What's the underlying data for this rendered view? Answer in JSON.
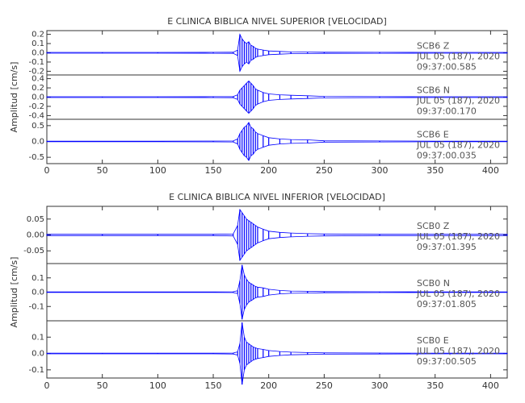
{
  "chart_data": [
    {
      "type": "line",
      "title": "E CLINICA BIBLICA NIVEL SUPERIOR [VELOCIDAD]",
      "ylabel": "Amplitud [cm/s]",
      "xlim": [
        0,
        415
      ],
      "xticks": [
        0,
        50,
        100,
        150,
        200,
        250,
        300,
        350,
        400
      ],
      "x": [
        0,
        50,
        100,
        150,
        168,
        172,
        174,
        176,
        178,
        180,
        182,
        184,
        186,
        188,
        190,
        195,
        200,
        210,
        220,
        235,
        250,
        300,
        350,
        415
      ],
      "panels": [
        {
          "station": "SCB6   Z",
          "date": "JUL 05 (187), 2020",
          "time": "09:37:00.585",
          "color": "#0000ff",
          "ylim": [
            -0.24,
            0.24
          ],
          "yticks": [
            0.2,
            0.1,
            {
              "value": 0,
              "label": "0.0"
            },
            -0.1,
            -0.2
          ],
          "values": [
            0.004,
            0.004,
            0.004,
            0.005,
            0.006,
            0.03,
            0.2,
            0.15,
            0.12,
            0.1,
            0.12,
            0.08,
            0.07,
            0.05,
            0.04,
            0.03,
            0.02,
            0.015,
            0.01,
            0.008,
            0.006,
            0.005,
            0.004,
            0.004
          ]
        },
        {
          "station": "SCB6   N",
          "date": "JUL 05 (187), 2020",
          "time": "09:37:00.170",
          "color": "#0000ff",
          "ylim": [
            -0.48,
            0.48
          ],
          "yticks": [
            0.4,
            0.2,
            {
              "value": 0,
              "label": "0.0"
            },
            -0.2,
            -0.4
          ],
          "values": [
            0.008,
            0.008,
            0.008,
            0.01,
            0.012,
            0.05,
            0.15,
            0.2,
            0.25,
            0.3,
            0.35,
            0.3,
            0.25,
            0.18,
            0.15,
            0.1,
            0.07,
            0.05,
            0.04,
            0.03,
            0.015,
            0.01,
            0.008,
            0.008
          ]
        },
        {
          "station": "SCB6   E",
          "date": "JUL 05 (187), 2020",
          "time": "09:37:00.035",
          "color": "#0000ff",
          "ylim": [
            -0.7,
            0.7
          ],
          "yticks": [
            0.5,
            {
              "value": 0,
              "label": "0.0"
            },
            -0.5
          ],
          "values": [
            0.01,
            0.01,
            0.01,
            0.012,
            0.015,
            0.08,
            0.25,
            0.35,
            0.45,
            0.5,
            0.6,
            0.45,
            0.4,
            0.3,
            0.25,
            0.18,
            0.12,
            0.08,
            0.06,
            0.05,
            0.02,
            0.015,
            0.01,
            0.01
          ]
        }
      ]
    },
    {
      "type": "line",
      "title": "E CLINICA BIBLICA NIVEL INFERIOR [VELOCIDAD]",
      "ylabel": "Amplitud [cm/s]",
      "xlim": [
        0,
        415
      ],
      "xticks": [
        0,
        50,
        100,
        150,
        200,
        250,
        300,
        350,
        400
      ],
      "x": [
        0,
        50,
        100,
        150,
        168,
        172,
        174,
        176,
        178,
        180,
        182,
        184,
        186,
        188,
        190,
        195,
        200,
        210,
        220,
        235,
        250,
        300,
        350,
        415
      ],
      "panels": [
        {
          "station": "SCB0   Z",
          "date": "JUL 05 (187), 2020",
          "time": "09:37:01.395",
          "color": "#0000ff",
          "ylim": [
            -0.09,
            0.09
          ],
          "yticks": [
            0.05,
            {
              "value": 0,
              "label": "0.00"
            },
            -0.05
          ],
          "values": [
            0.002,
            0.002,
            0.002,
            0.002,
            0.003,
            0.03,
            0.08,
            0.07,
            0.06,
            0.05,
            0.045,
            0.04,
            0.035,
            0.03,
            0.025,
            0.018,
            0.012,
            0.008,
            0.006,
            0.004,
            0.003,
            0.002,
            0.002,
            0.002
          ]
        },
        {
          "station": "SCB0   N",
          "date": "JUL 05 (187), 2020",
          "time": "09:37:01.805",
          "color": "#0000ff",
          "ylim": [
            -0.2,
            0.2
          ],
          "yticks": [
            0.1,
            {
              "value": 0,
              "label": "0.0"
            },
            -0.1
          ],
          "values": [
            0.002,
            0.002,
            0.002,
            0.002,
            0.003,
            0.01,
            0.08,
            0.19,
            0.12,
            0.09,
            0.07,
            0.06,
            0.05,
            0.04,
            0.035,
            0.03,
            0.02,
            0.012,
            0.008,
            0.006,
            0.004,
            0.003,
            0.002,
            0.002
          ]
        },
        {
          "station": "SCB0   E",
          "date": "JUL 05 (187), 2020",
          "time": "09:37:00.505",
          "color": "#0000ff",
          "ylim": [
            -0.15,
            0.2
          ],
          "yticks": [
            0.1,
            {
              "value": 0,
              "label": "0.0"
            },
            -0.1
          ],
          "values": [
            0.002,
            0.002,
            0.002,
            0.002,
            0.003,
            0.01,
            0.06,
            0.19,
            0.1,
            0.07,
            0.06,
            0.05,
            0.04,
            0.035,
            0.03,
            0.025,
            0.018,
            0.012,
            0.008,
            0.006,
            0.004,
            0.003,
            0.002,
            0.002
          ]
        }
      ]
    }
  ]
}
